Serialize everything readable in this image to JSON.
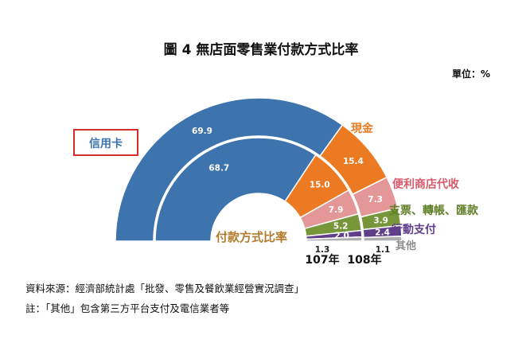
{
  "chart_data": {
    "type": "donut",
    "title": "圖 4  無店面零售業付款方式比率",
    "unit_label": "單位：%",
    "center_label": "付款方式比率",
    "categories": [
      "信用卡",
      "現金",
      "便利商店代收",
      "支票、轉帳、匯款",
      "行動支付",
      "其他"
    ],
    "colors": [
      "#3d74ae",
      "#ec7a22",
      "#e49797",
      "#77963a",
      "#5f3f89",
      "#aeaeae"
    ],
    "series": [
      {
        "name": "107年",
        "values": [
          68.7,
          15.0,
          7.9,
          5.2,
          2.0,
          1.3
        ]
      },
      {
        "name": "108年",
        "values": [
          69.9,
          15.4,
          7.3,
          3.9,
          2.4,
          1.1
        ]
      }
    ],
    "year_labels": [
      "107年",
      "108年"
    ],
    "source_note": "資料來源：經濟部統計處「批發、零售及餐飲業經營實況調查」",
    "footnote": "註：「其他」包含第三方平台支付及電信業者等"
  }
}
